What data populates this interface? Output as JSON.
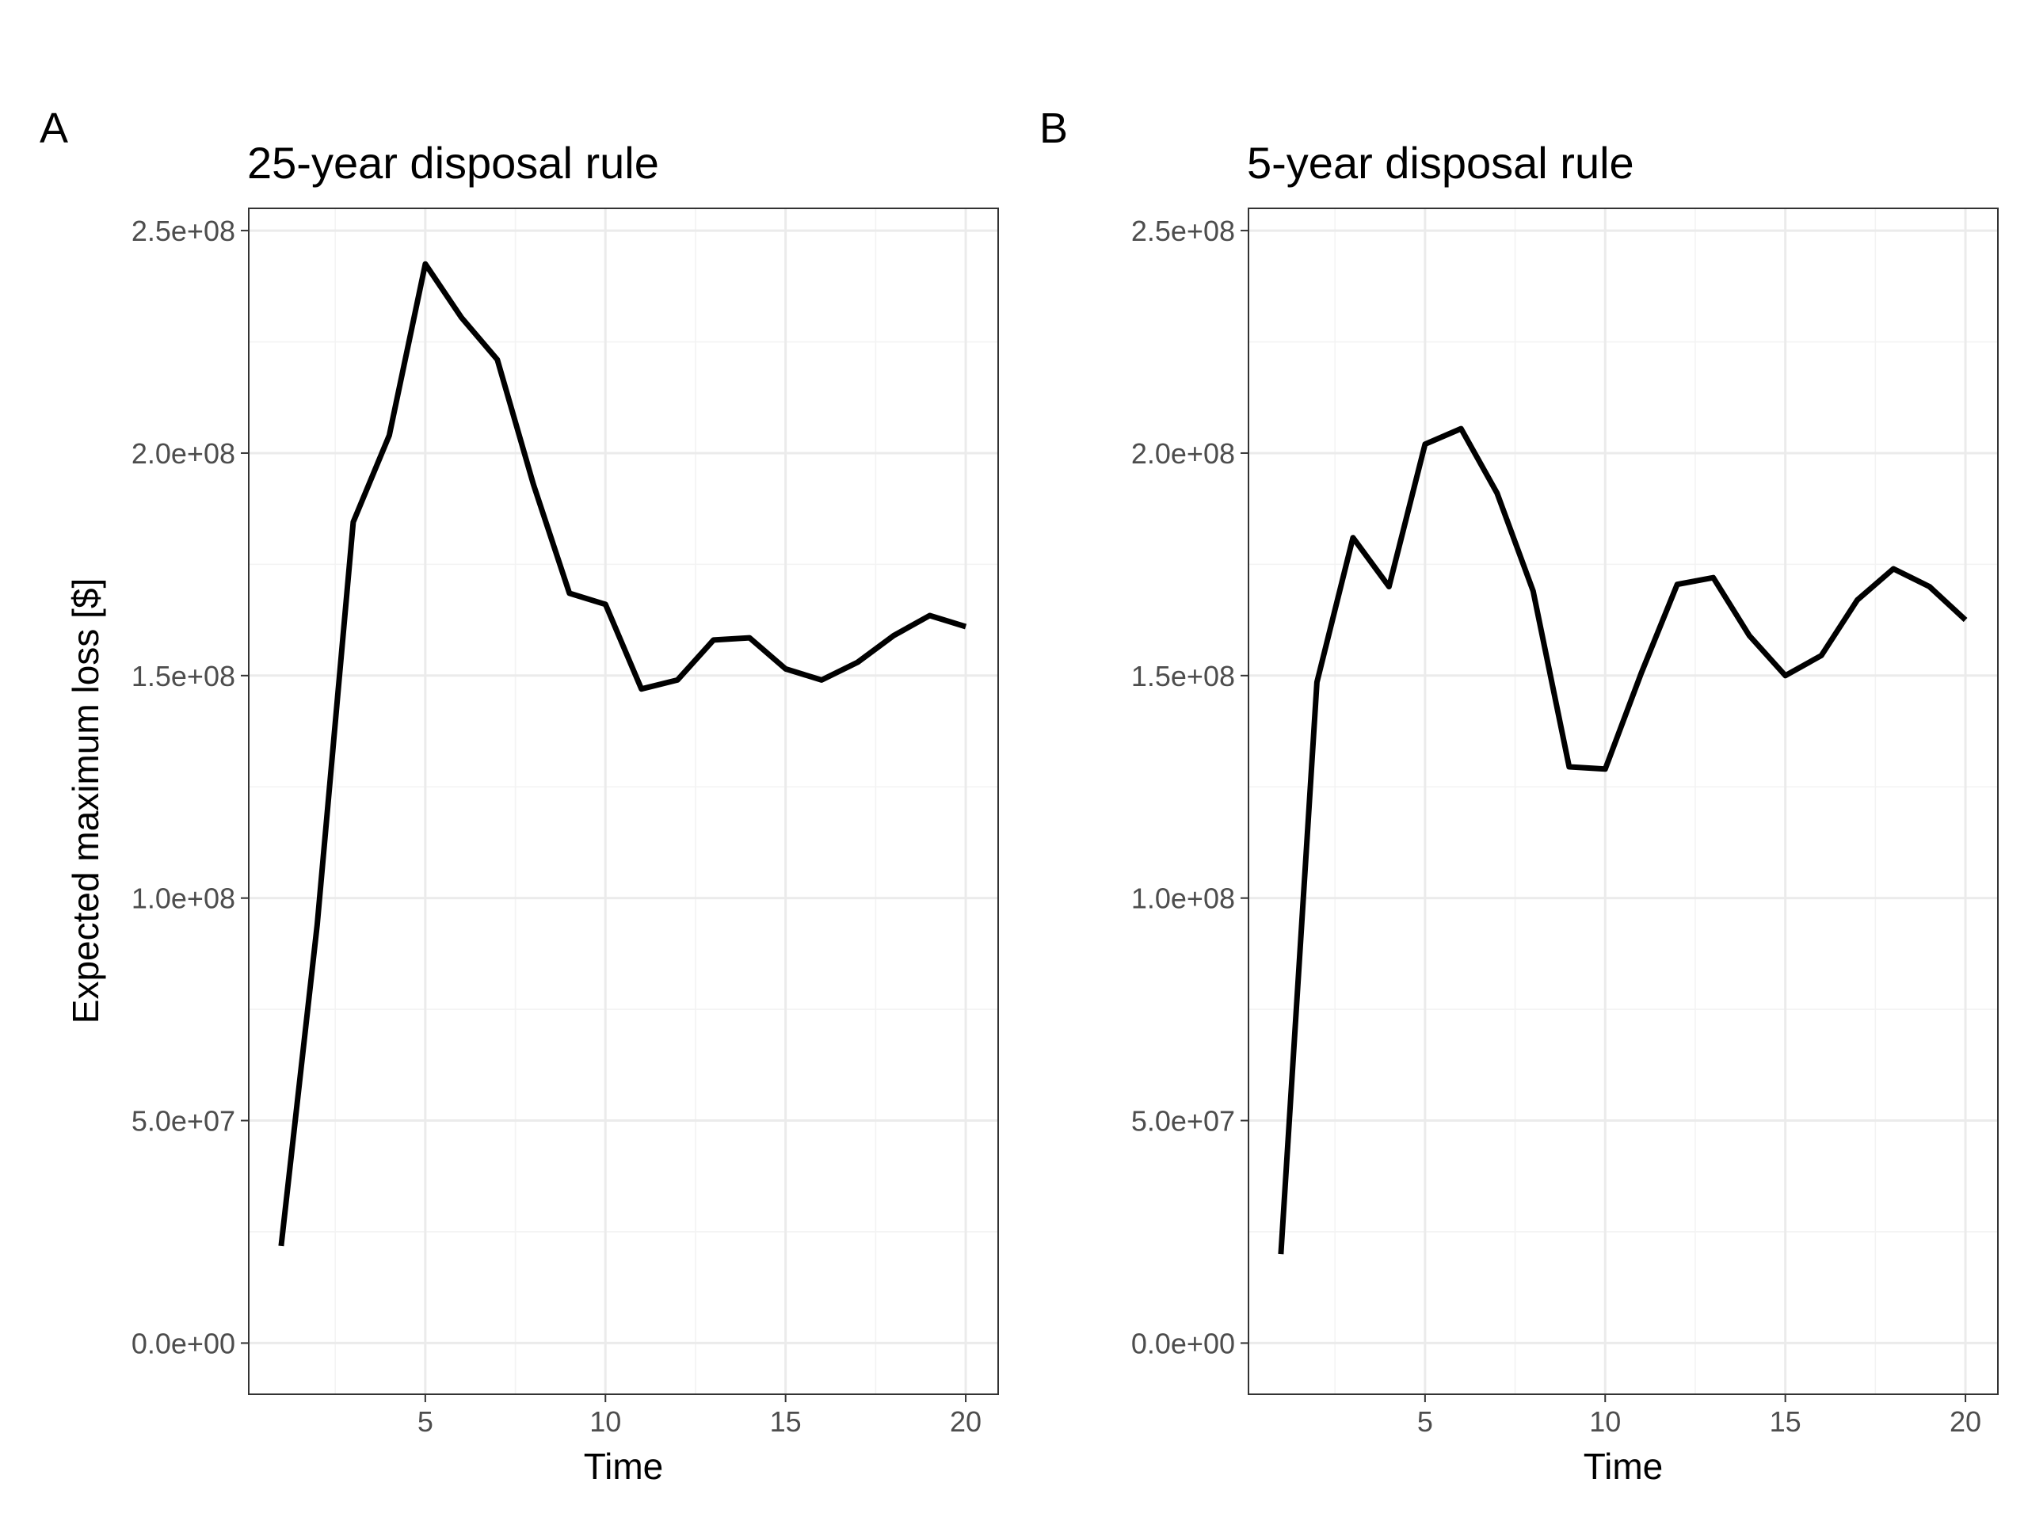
{
  "chart_data": [
    {
      "type": "line",
      "panel": "A",
      "title": "25-year disposal rule",
      "xlabel": "Time",
      "ylabel": "Expected maximum loss [$]",
      "xlim": [
        0.1,
        20.9
      ],
      "ylim": [
        -11500000,
        255000000
      ],
      "x_ticks": [
        5,
        10,
        15,
        20
      ],
      "x_tick_labels": [
        "5",
        "10",
        "15",
        "20"
      ],
      "y_ticks": [
        0,
        50000000,
        100000000,
        150000000,
        200000000,
        250000000
      ],
      "y_tick_labels": [
        "0.0e+00",
        "5.0e+07",
        "1.0e+08",
        "1.5e+08",
        "2.0e+08",
        "2.5e+08"
      ],
      "grid": true,
      "series": [
        {
          "x": [
            1,
            2,
            3,
            4,
            5,
            6,
            7,
            8,
            9,
            10,
            11,
            12,
            13,
            14,
            15,
            16,
            17,
            18,
            19,
            20
          ],
          "values": [
            21800000,
            94000000,
            184500000,
            204000000,
            242500000,
            230500000,
            221000000,
            193000000,
            168500000,
            166000000,
            147000000,
            149000000,
            158000000,
            158500000,
            151500000,
            149000000,
            153000000,
            159000000,
            163500000,
            161000000
          ]
        }
      ]
    },
    {
      "type": "line",
      "panel": "B",
      "title": "5-year disposal rule",
      "xlabel": "Time",
      "ylabel": "",
      "xlim": [
        0.1,
        20.9
      ],
      "ylim": [
        -11500000,
        255000000
      ],
      "x_ticks": [
        5,
        10,
        15,
        20
      ],
      "x_tick_labels": [
        "5",
        "10",
        "15",
        "20"
      ],
      "y_ticks": [
        0,
        50000000,
        100000000,
        150000000,
        200000000,
        250000000
      ],
      "y_tick_labels": [
        "0.0e+00",
        "5.0e+07",
        "1.0e+08",
        "1.5e+08",
        "2.0e+08",
        "2.5e+08"
      ],
      "grid": true,
      "series": [
        {
          "x": [
            1,
            2,
            3,
            4,
            5,
            6,
            7,
            8,
            9,
            10,
            11,
            12,
            13,
            14,
            15,
            16,
            17,
            18,
            19,
            20
          ],
          "values": [
            20000000,
            148500000,
            181000000,
            170000000,
            202000000,
            205500000,
            191000000,
            169000000,
            129500000,
            129000000,
            150500000,
            170500000,
            172000000,
            159000000,
            150000000,
            154500000,
            167000000,
            174000000,
            170000000,
            162500000
          ]
        }
      ]
    }
  ]
}
